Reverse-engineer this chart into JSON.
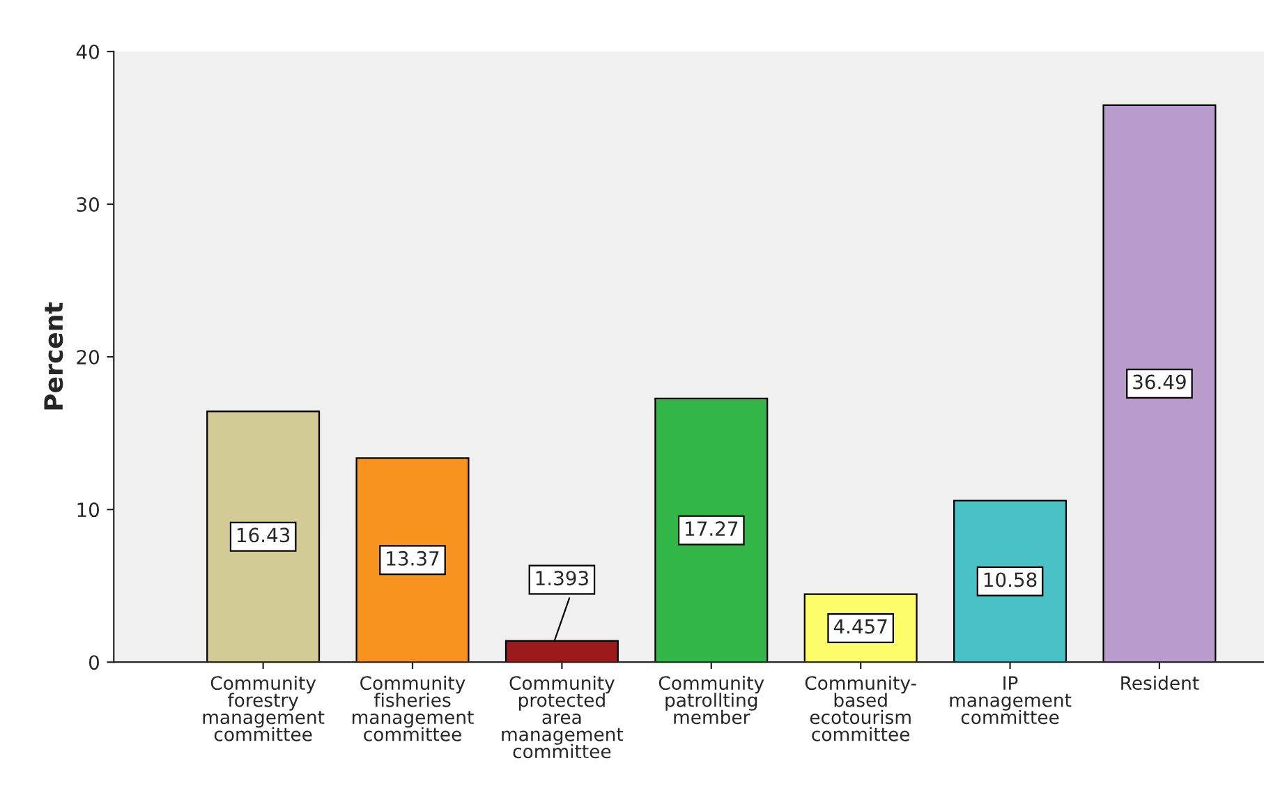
{
  "chart_data": {
    "type": "bar",
    "ylabel": "Percent",
    "categories": [
      "Community\nforestry\nmanagement\ncommittee",
      "Community\nfisheries\nmanagement\ncommittee",
      "Community\nprotected\narea\nmanagement\ncommittee",
      "Community\npatrollting\nmember",
      "Community-\nbased\necotourism\ncommittee",
      "IP\nmanagement\ncommittee",
      "Resident"
    ],
    "values": [
      16.43,
      13.37,
      1.393,
      17.27,
      4.457,
      10.58,
      36.49
    ],
    "colors": [
      "#d3cb95",
      "#f7931e",
      "#9c1a1c",
      "#33b648",
      "#fdfd6a",
      "#4ac1c4",
      "#b89ccb"
    ],
    "ylim": [
      0,
      40
    ],
    "yticks": [
      0,
      10,
      20,
      30,
      40
    ],
    "data_labels": true,
    "grid": false,
    "legend": false
  }
}
